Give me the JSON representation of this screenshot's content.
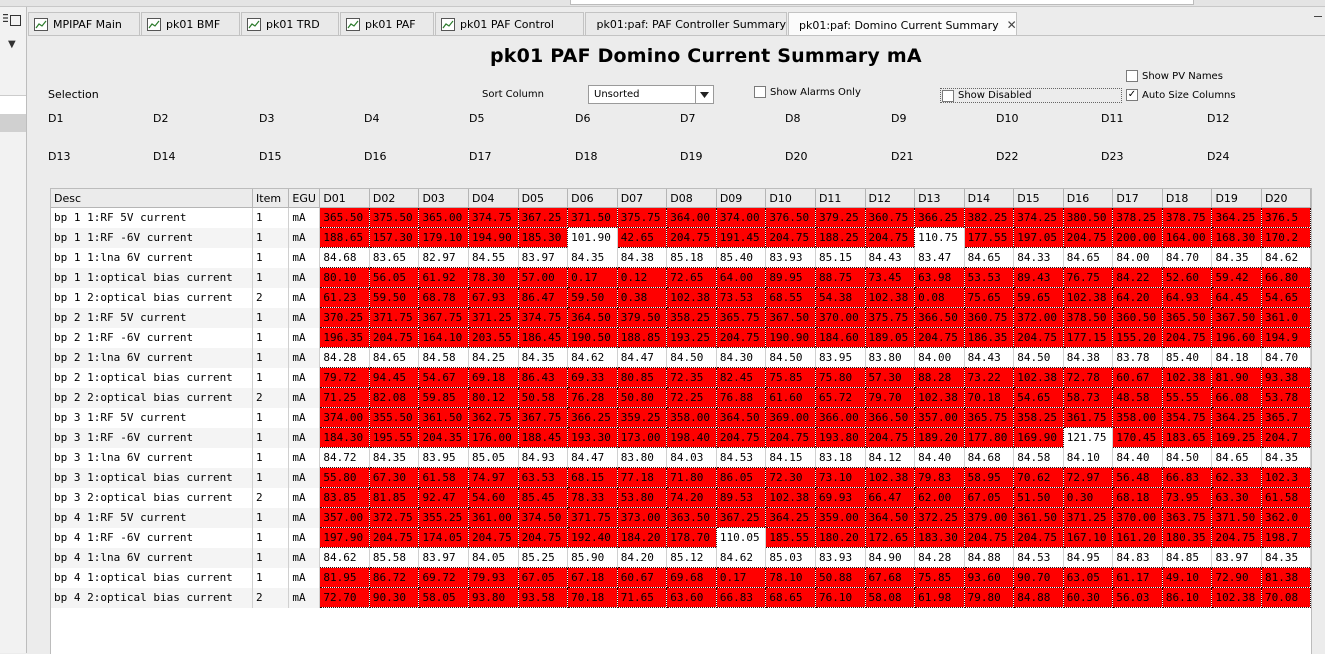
{
  "tabs": [
    {
      "label": "MPIPAF Main",
      "active": false
    },
    {
      "label": "pk01 BMF",
      "active": false
    },
    {
      "label": "pk01 TRD",
      "active": false
    },
    {
      "label": "pk01 PAF",
      "active": false
    },
    {
      "label": "pk01 PAF Control",
      "active": false
    },
    {
      "label": "pk01:paf: PAF Controller Summary",
      "active": false
    },
    {
      "label": "pk01:paf: Domino Current Summary",
      "active": true
    }
  ],
  "page_title": "pk01 PAF Domino Current Summary mA",
  "selection_label": "Selection",
  "sort_label": "Sort Column",
  "sort_value": "Unsorted",
  "checkboxes": {
    "show_alarms_only": {
      "label": "Show Alarms Only",
      "checked": false
    },
    "show_disabled": {
      "label": "Show Disabled",
      "checked": false
    },
    "show_pv_names": {
      "label": "Show PV Names",
      "checked": false
    },
    "auto_size_columns": {
      "label": "Auto Size Columns",
      "checked": true
    }
  },
  "dominos_row1": [
    "D1",
    "D2",
    "D3",
    "D4",
    "D5",
    "D6",
    "D7",
    "D8",
    "D9",
    "D10",
    "D11",
    "D12"
  ],
  "dominos_row2": [
    "D13",
    "D14",
    "D15",
    "D16",
    "D17",
    "D18",
    "D19",
    "D20",
    "D21",
    "D22",
    "D23",
    "D24"
  ],
  "columns": [
    "Desc",
    "Item",
    "EGU",
    "D01",
    "D02",
    "D03",
    "D04",
    "D05",
    "D06",
    "D07",
    "D08",
    "D09",
    "D10",
    "D11",
    "D12",
    "D13",
    "D14",
    "D15",
    "D16",
    "D17",
    "D18",
    "D19",
    "D20"
  ],
  "rows": [
    {
      "desc": "bp 1  1:RF 5V current",
      "item": "1",
      "egu": "mA",
      "values": [
        "365.50",
        "375.50",
        "365.00",
        "374.75",
        "367.25",
        "371.50",
        "375.75",
        "364.00",
        "374.00",
        "376.50",
        "379.25",
        "360.75",
        "366.25",
        "382.25",
        "374.25",
        "380.50",
        "378.25",
        "378.75",
        "364.25",
        "376.5"
      ],
      "ok": []
    },
    {
      "desc": "bp 1  1:RF -6V current",
      "item": "1",
      "egu": "mA",
      "values": [
        "188.65",
        "157.30",
        "179.10",
        "194.90",
        "185.30",
        "101.90",
        "42.65",
        "204.75",
        "191.45",
        "204.75",
        "188.25",
        "204.75",
        "110.75",
        "177.55",
        "197.05",
        "204.75",
        "200.00",
        "164.00",
        "168.30",
        "170.2"
      ],
      "ok": [
        5,
        12
      ]
    },
    {
      "desc": "bp 1  1:lna 6V current",
      "item": "1",
      "egu": "mA",
      "values": [
        "84.68",
        "83.65",
        "82.97",
        "84.55",
        "83.97",
        "84.35",
        "84.38",
        "85.18",
        "85.40",
        "83.93",
        "85.15",
        "84.43",
        "83.47",
        "84.65",
        "84.33",
        "84.65",
        "84.00",
        "84.70",
        "84.35",
        "84.62"
      ],
      "ok": [
        0,
        1,
        2,
        3,
        4,
        5,
        6,
        7,
        8,
        9,
        10,
        11,
        12,
        13,
        14,
        15,
        16,
        17,
        18,
        19
      ]
    },
    {
      "desc": "bp 1  1:optical bias current",
      "item": "1",
      "egu": "mA",
      "values": [
        "80.10",
        "56.05",
        "61.92",
        "78.30",
        "57.00",
        "0.17",
        "0.12",
        "72.65",
        "64.00",
        "89.95",
        "88.75",
        "73.45",
        "63.98",
        "53.53",
        "89.43",
        "76.75",
        "84.22",
        "52.60",
        "59.42",
        "66.80"
      ],
      "ok": []
    },
    {
      "desc": "bp 1  2:optical bias current",
      "item": "2",
      "egu": "mA",
      "values": [
        "61.23",
        "59.50",
        "68.78",
        "67.93",
        "86.47",
        "59.50",
        "0.38",
        "102.38",
        "73.53",
        "68.55",
        "54.38",
        "102.38",
        "0.08",
        "75.65",
        "59.65",
        "102.38",
        "64.20",
        "64.93",
        "64.45",
        "54.65"
      ],
      "ok": []
    },
    {
      "desc": "bp 2  1:RF 5V current",
      "item": "1",
      "egu": "mA",
      "values": [
        "370.25",
        "371.75",
        "367.75",
        "371.25",
        "374.75",
        "364.50",
        "379.50",
        "358.25",
        "365.75",
        "367.50",
        "370.00",
        "375.75",
        "366.50",
        "360.75",
        "372.00",
        "378.50",
        "360.50",
        "365.50",
        "367.50",
        "361.0"
      ],
      "ok": []
    },
    {
      "desc": "bp 2  1:RF -6V current",
      "item": "1",
      "egu": "mA",
      "values": [
        "196.35",
        "204.75",
        "164.10",
        "203.55",
        "186.45",
        "190.50",
        "188.85",
        "193.25",
        "204.75",
        "190.90",
        "184.60",
        "189.05",
        "204.75",
        "186.35",
        "204.75",
        "177.15",
        "155.20",
        "204.75",
        "196.60",
        "194.9"
      ],
      "ok": []
    },
    {
      "desc": "bp 2  1:lna 6V current",
      "item": "1",
      "egu": "mA",
      "values": [
        "84.28",
        "84.65",
        "84.58",
        "84.25",
        "84.35",
        "84.62",
        "84.47",
        "84.50",
        "84.30",
        "84.50",
        "83.95",
        "83.80",
        "84.00",
        "84.43",
        "84.50",
        "84.38",
        "83.78",
        "85.40",
        "84.18",
        "84.70"
      ],
      "ok": [
        0,
        1,
        2,
        3,
        4,
        5,
        6,
        7,
        8,
        9,
        10,
        11,
        12,
        13,
        14,
        15,
        16,
        17,
        18,
        19
      ]
    },
    {
      "desc": "bp 2  1:optical bias current",
      "item": "1",
      "egu": "mA",
      "values": [
        "79.72",
        "94.45",
        "54.67",
        "69.18",
        "86.43",
        "69.33",
        "80.85",
        "72.35",
        "82.45",
        "75.85",
        "75.80",
        "57.30",
        "88.28",
        "73.22",
        "102.38",
        "72.78",
        "60.67",
        "102.38",
        "81.90",
        "93.38"
      ],
      "ok": []
    },
    {
      "desc": "bp 2  2:optical bias current",
      "item": "2",
      "egu": "mA",
      "values": [
        "71.25",
        "82.08",
        "59.85",
        "80.12",
        "50.58",
        "76.28",
        "50.80",
        "72.25",
        "76.88",
        "61.60",
        "65.72",
        "79.70",
        "102.38",
        "70.18",
        "54.65",
        "58.73",
        "48.58",
        "55.55",
        "66.08",
        "53.78"
      ],
      "ok": []
    },
    {
      "desc": "bp 3  1:RF 5V current",
      "item": "1",
      "egu": "mA",
      "values": [
        "374.00",
        "355.50",
        "361.50",
        "362.75",
        "367.75",
        "366.25",
        "359.25",
        "358.00",
        "364.50",
        "369.00",
        "366.00",
        "366.50",
        "357.00",
        "365.75",
        "358.25",
        "361.75",
        "358.00",
        "354.75",
        "364.25",
        "365.7"
      ],
      "ok": []
    },
    {
      "desc": "bp 3  1:RF -6V current",
      "item": "1",
      "egu": "mA",
      "values": [
        "184.30",
        "195.55",
        "204.35",
        "176.00",
        "188.45",
        "193.30",
        "173.00",
        "198.40",
        "204.75",
        "204.75",
        "193.80",
        "204.75",
        "189.20",
        "177.80",
        "169.90",
        "121.75",
        "170.45",
        "183.65",
        "169.25",
        "204.7"
      ],
      "ok": [
        15
      ]
    },
    {
      "desc": "bp 3  1:lna 6V current",
      "item": "1",
      "egu": "mA",
      "values": [
        "84.72",
        "84.35",
        "83.95",
        "85.05",
        "84.93",
        "84.47",
        "83.80",
        "84.03",
        "84.53",
        "84.15",
        "83.18",
        "84.12",
        "84.40",
        "84.68",
        "84.58",
        "84.10",
        "84.40",
        "84.50",
        "84.65",
        "84.35"
      ],
      "ok": [
        0,
        1,
        2,
        3,
        4,
        5,
        6,
        7,
        8,
        9,
        10,
        11,
        12,
        13,
        14,
        15,
        16,
        17,
        18,
        19
      ]
    },
    {
      "desc": "bp 3  1:optical bias current",
      "item": "1",
      "egu": "mA",
      "values": [
        "55.80",
        "67.30",
        "61.58",
        "74.97",
        "63.53",
        "68.15",
        "77.18",
        "71.80",
        "86.05",
        "72.30",
        "73.10",
        "102.38",
        "79.83",
        "58.95",
        "70.62",
        "72.97",
        "56.48",
        "66.83",
        "62.33",
        "102.3"
      ],
      "ok": []
    },
    {
      "desc": "bp 3  2:optical bias current",
      "item": "2",
      "egu": "mA",
      "values": [
        "83.85",
        "81.85",
        "92.47",
        "54.60",
        "85.45",
        "78.33",
        "53.80",
        "74.20",
        "89.53",
        "102.38",
        "69.93",
        "66.47",
        "62.00",
        "67.05",
        "51.50",
        "0.30",
        "68.18",
        "73.95",
        "63.30",
        "61.58"
      ],
      "ok": []
    },
    {
      "desc": "bp 4  1:RF 5V current",
      "item": "1",
      "egu": "mA",
      "values": [
        "357.00",
        "372.75",
        "355.25",
        "361.00",
        "374.50",
        "371.75",
        "373.00",
        "363.50",
        "367.25",
        "364.25",
        "359.00",
        "364.50",
        "372.25",
        "379.00",
        "361.50",
        "371.25",
        "370.00",
        "363.75",
        "371.50",
        "362.0"
      ],
      "ok": []
    },
    {
      "desc": "bp 4  1:RF -6V current",
      "item": "1",
      "egu": "mA",
      "values": [
        "197.90",
        "204.75",
        "174.05",
        "204.75",
        "204.75",
        "192.40",
        "184.20",
        "178.70",
        "110.05",
        "185.55",
        "180.20",
        "172.65",
        "183.30",
        "204.75",
        "204.75",
        "167.10",
        "161.20",
        "180.35",
        "204.75",
        "198.7"
      ],
      "ok": [
        8
      ]
    },
    {
      "desc": "bp 4  1:lna 6V current",
      "item": "1",
      "egu": "mA",
      "values": [
        "84.62",
        "85.58",
        "83.97",
        "84.05",
        "85.25",
        "85.90",
        "84.20",
        "85.12",
        "84.62",
        "85.03",
        "83.93",
        "84.90",
        "84.28",
        "84.88",
        "84.53",
        "84.95",
        "84.83",
        "84.85",
        "83.97",
        "84.35"
      ],
      "ok": [
        0,
        1,
        2,
        3,
        4,
        5,
        6,
        7,
        8,
        9,
        10,
        11,
        12,
        13,
        14,
        15,
        16,
        17,
        18,
        19
      ]
    },
    {
      "desc": "bp 4  1:optical bias current",
      "item": "1",
      "egu": "mA",
      "values": [
        "81.95",
        "86.72",
        "69.72",
        "79.93",
        "67.05",
        "67.18",
        "60.67",
        "69.68",
        "0.17",
        "78.10",
        "50.88",
        "67.68",
        "75.85",
        "93.60",
        "90.70",
        "63.05",
        "61.17",
        "49.10",
        "72.90",
        "81.38"
      ],
      "ok": []
    },
    {
      "desc": "bp 4  2:optical bias current",
      "item": "2",
      "egu": "mA",
      "values": [
        "72.70",
        "90.30",
        "58.05",
        "93.80",
        "93.58",
        "70.18",
        "71.65",
        "63.60",
        "66.83",
        "68.65",
        "76.10",
        "58.08",
        "61.98",
        "79.80",
        "84.88",
        "60.30",
        "56.03",
        "86.10",
        "102.38",
        "70.08"
      ],
      "ok": []
    }
  ]
}
